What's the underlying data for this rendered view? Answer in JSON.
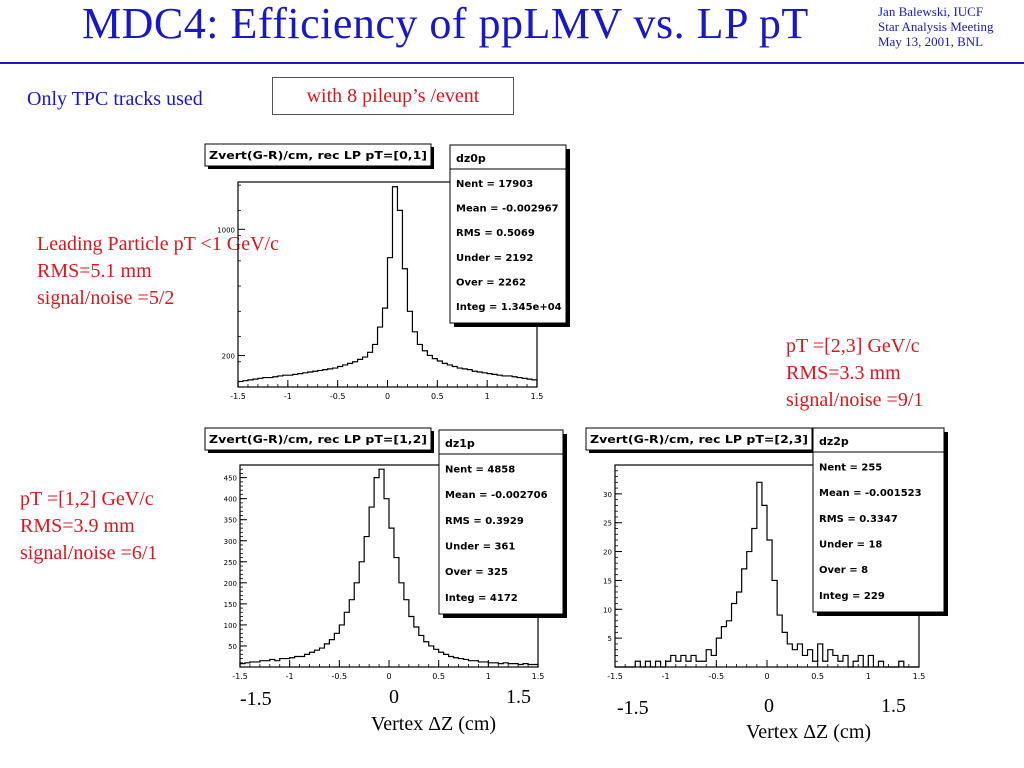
{
  "slide": {
    "title": "MDC4:  Efficiency of  ppLMV vs.  LP pT",
    "author_lines": [
      "Jan Balewski, IUCF",
      "Star Analysis Meeting",
      "May 13, 2001, BNL"
    ],
    "tpc_note": "Only TPC tracks used",
    "pileup_note": "with 8 pileup’s /event",
    "colors": {
      "title": "#1818c8",
      "annotation": "#e0141e"
    }
  },
  "annotations": {
    "p0": [
      "Leading Particle pT <1 GeV/c",
      "RMS=5.1 mm",
      "signal/noise =5/2"
    ],
    "p1": [
      " pT =[1,2] GeV/c",
      "RMS=3.9 mm",
      "signal/noise =6/1"
    ],
    "p2": [
      " pT =[2,3] GeV/c",
      "RMS=3.3 mm",
      "signal/noise =9/1"
    ]
  },
  "bottom_axes": {
    "mid": {
      "t1": "-1.5",
      "t2": "0",
      "t3": "1.5",
      "label": "Vertex  ΔZ  (cm)"
    },
    "right": {
      "t1": "-1.5",
      "t2": "0",
      "t3": "1.5",
      "label": "Vertex  ΔZ  (cm)"
    }
  },
  "chart_data": [
    {
      "type": "bar",
      "title": "Zvert(G-R)/cm, rec LP pT=[0,1]",
      "xlim": [
        -1.5,
        1.5
      ],
      "ylim": [
        0,
        1300
      ],
      "x_ticks": [
        "-1.5",
        "-1",
        "-0.5",
        "0",
        "0.5",
        "1",
        "1.5"
      ],
      "y_ticks": [
        {
          "v": 200,
          "label": "200"
        },
        {
          "v": 1000,
          "label": "1000"
        }
      ],
      "stats": {
        "name": "dz0p",
        "rows": [
          "Nent = 17903",
          "Mean  = -0.002967",
          "RMS   = 0.5069",
          "Under =   2192",
          "Over  =   2262",
          "Integ = 1.345e+04"
        ]
      },
      "bin_width": 0.05,
      "values": [
        35,
        40,
        45,
        50,
        55,
        60,
        60,
        65,
        70,
        75,
        75,
        80,
        85,
        90,
        95,
        100,
        105,
        110,
        115,
        120,
        130,
        140,
        150,
        160,
        175,
        190,
        220,
        270,
        380,
        500,
        820,
        1270,
        1120,
        750,
        480,
        350,
        270,
        230,
        200,
        180,
        165,
        150,
        140,
        130,
        120,
        115,
        110,
        100,
        95,
        90,
        85,
        80,
        75,
        70,
        70,
        65,
        60,
        55,
        50,
        45
      ]
    },
    {
      "type": "bar",
      "title": "Zvert(G-R)/cm, rec LP pT=[1,2]",
      "xlim": [
        -1.5,
        1.5
      ],
      "ylim": [
        0,
        480
      ],
      "x_ticks": [
        "-1.5",
        "-1",
        "-0.5",
        "0",
        "0.5",
        "1",
        "1.5"
      ],
      "y_ticks": [
        {
          "v": 50,
          "label": "50"
        },
        {
          "v": 100,
          "label": "100"
        },
        {
          "v": 150,
          "label": "150"
        },
        {
          "v": 200,
          "label": "200"
        },
        {
          "v": 250,
          "label": "250"
        },
        {
          "v": 300,
          "label": "300"
        },
        {
          "v": 350,
          "label": "350"
        },
        {
          "v": 400,
          "label": "400"
        },
        {
          "v": 450,
          "label": "450"
        }
      ],
      "stats": {
        "name": "dz1p",
        "rows": [
          "Nent = 4858",
          "Mean  = -0.002706",
          "RMS   = 0.3929",
          "Under =    361",
          "Over  =    325",
          "Integ =   4172"
        ]
      },
      "bin_width": 0.05,
      "values": [
        8,
        10,
        12,
        12,
        15,
        15,
        18,
        15,
        20,
        20,
        22,
        25,
        25,
        30,
        35,
        40,
        45,
        55,
        65,
        80,
        100,
        130,
        160,
        200,
        250,
        310,
        380,
        450,
        470,
        400,
        330,
        260,
        200,
        160,
        120,
        95,
        75,
        60,
        50,
        42,
        35,
        30,
        25,
        22,
        20,
        18,
        15,
        15,
        12,
        12,
        10,
        10,
        8,
        10,
        8,
        8,
        6,
        8,
        6,
        6
      ]
    },
    {
      "type": "bar",
      "title": "Zvert(G-R)/cm, rec LP pT=[2,3]",
      "xlim": [
        -1.5,
        1.5
      ],
      "ylim": [
        0,
        35
      ],
      "x_ticks": [
        "-1.5",
        "-1",
        "-0.5",
        "0",
        "0.5",
        "1",
        "1.5"
      ],
      "y_ticks": [
        {
          "v": 5,
          "label": "5"
        },
        {
          "v": 10,
          "label": "10"
        },
        {
          "v": 15,
          "label": "15"
        },
        {
          "v": 20,
          "label": "20"
        },
        {
          "v": 25,
          "label": "25"
        },
        {
          "v": 30,
          "label": "30"
        }
      ],
      "stats": {
        "name": "dz2p",
        "rows": [
          "Nent = 255",
          "Mean  = -0.001523",
          "RMS   = 0.3347",
          "Under =     18",
          "Over  =      8",
          "Integ =    229"
        ]
      },
      "bin_width": 0.05,
      "values": [
        0,
        0,
        0,
        0,
        1,
        0,
        1,
        0,
        1,
        0,
        1,
        2,
        1,
        2,
        1,
        2,
        1,
        1,
        3,
        2,
        5,
        7,
        8,
        11,
        13,
        17,
        20,
        24,
        32,
        28,
        22,
        15,
        9,
        6,
        4,
        3,
        4,
        2,
        3,
        1,
        4,
        1,
        3,
        2,
        1,
        2,
        0,
        1,
        2,
        0,
        2,
        0,
        1,
        0,
        0,
        0,
        1,
        0,
        0,
        0
      ]
    }
  ]
}
